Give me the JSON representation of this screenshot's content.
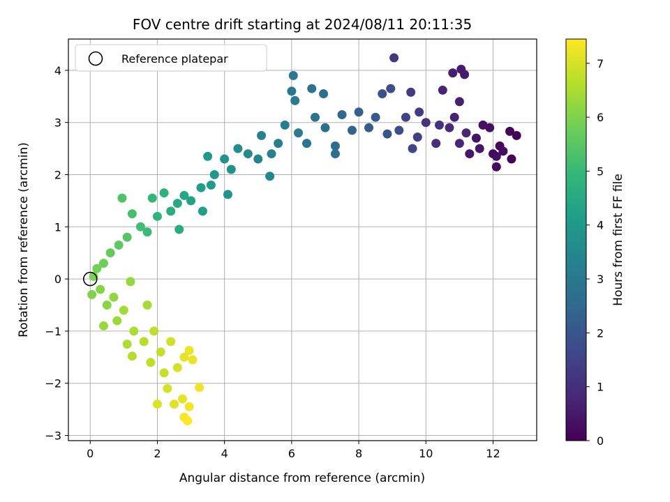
{
  "chart_data": {
    "type": "scatter",
    "title": "FOV centre drift starting at 2024/08/11 20:11:35",
    "xlabel": "Angular distance from reference (arcmin)",
    "ylabel": "Rotation from reference (arcmin)",
    "xlim": [
      -0.65,
      13.3
    ],
    "ylim": [
      -3.1,
      4.6
    ],
    "xticks": [
      0,
      2,
      4,
      6,
      8,
      10,
      12
    ],
    "yticks": [
      -3,
      -2,
      -1,
      0,
      1,
      2,
      3,
      4
    ],
    "grid": true,
    "legend": {
      "location": "top-left",
      "entries": [
        "Reference platepar"
      ]
    },
    "reference_point": {
      "x": 0,
      "y": 0
    },
    "colorbar": {
      "label": "Hours from first FF file",
      "colormap": "viridis",
      "range": [
        0,
        7.45
      ],
      "ticks": [
        0,
        1,
        2,
        3,
        4,
        5,
        6,
        7
      ]
    },
    "points": [
      {
        "x": 12.7,
        "y": 2.75,
        "h": 0.05
      },
      {
        "x": 12.5,
        "y": 2.83,
        "h": 0.1
      },
      {
        "x": 12.55,
        "y": 2.3,
        "h": 0.1
      },
      {
        "x": 12.2,
        "y": 2.55,
        "h": 0.15
      },
      {
        "x": 12.1,
        "y": 2.15,
        "h": 0.2
      },
      {
        "x": 12.0,
        "y": 2.4,
        "h": 0.2
      },
      {
        "x": 12.3,
        "y": 2.45,
        "h": 0.25
      },
      {
        "x": 12.1,
        "y": 2.35,
        "h": 0.25
      },
      {
        "x": 11.9,
        "y": 2.9,
        "h": 0.3
      },
      {
        "x": 11.7,
        "y": 2.95,
        "h": 0.35
      },
      {
        "x": 11.5,
        "y": 2.7,
        "h": 0.4
      },
      {
        "x": 11.3,
        "y": 2.4,
        "h": 0.45
      },
      {
        "x": 11.6,
        "y": 2.5,
        "h": 0.45
      },
      {
        "x": 11.05,
        "y": 4.02,
        "h": 0.5
      },
      {
        "x": 11.15,
        "y": 3.92,
        "h": 0.55
      },
      {
        "x": 10.8,
        "y": 3.95,
        "h": 0.6
      },
      {
        "x": 11.0,
        "y": 3.4,
        "h": 0.65
      },
      {
        "x": 10.85,
        "y": 3.1,
        "h": 0.7
      },
      {
        "x": 10.5,
        "y": 3.62,
        "h": 0.75
      },
      {
        "x": 11.2,
        "y": 2.8,
        "h": 0.8
      },
      {
        "x": 11.0,
        "y": 2.6,
        "h": 0.85
      },
      {
        "x": 10.7,
        "y": 2.9,
        "h": 0.9
      },
      {
        "x": 10.3,
        "y": 2.6,
        "h": 1.0
      },
      {
        "x": 10.4,
        "y": 2.95,
        "h": 1.05
      },
      {
        "x": 10.0,
        "y": 3.0,
        "h": 1.1
      },
      {
        "x": 9.05,
        "y": 4.24,
        "h": 1.2
      },
      {
        "x": 9.55,
        "y": 3.58,
        "h": 1.3
      },
      {
        "x": 9.8,
        "y": 3.2,
        "h": 1.35
      },
      {
        "x": 9.75,
        "y": 2.72,
        "h": 1.4
      },
      {
        "x": 9.4,
        "y": 3.1,
        "h": 1.5
      },
      {
        "x": 9.6,
        "y": 2.5,
        "h": 1.6
      },
      {
        "x": 9.2,
        "y": 2.85,
        "h": 1.7
      },
      {
        "x": 8.95,
        "y": 3.65,
        "h": 1.8
      },
      {
        "x": 8.7,
        "y": 3.55,
        "h": 1.9
      },
      {
        "x": 8.85,
        "y": 2.78,
        "h": 2.0
      },
      {
        "x": 8.5,
        "y": 3.1,
        "h": 2.1
      },
      {
        "x": 8.3,
        "y": 2.9,
        "h": 2.2
      },
      {
        "x": 8.0,
        "y": 3.2,
        "h": 2.3
      },
      {
        "x": 7.8,
        "y": 2.85,
        "h": 2.4
      },
      {
        "x": 7.5,
        "y": 3.15,
        "h": 2.5
      },
      {
        "x": 7.3,
        "y": 2.4,
        "h": 2.6
      },
      {
        "x": 7.3,
        "y": 2.55,
        "h": 2.65
      },
      {
        "x": 6.95,
        "y": 3.55,
        "h": 2.7
      },
      {
        "x": 7.0,
        "y": 2.9,
        "h": 2.75
      },
      {
        "x": 6.6,
        "y": 3.65,
        "h": 2.8
      },
      {
        "x": 6.7,
        "y": 3.1,
        "h": 2.85
      },
      {
        "x": 6.45,
        "y": 2.6,
        "h": 2.9
      },
      {
        "x": 6.05,
        "y": 3.9,
        "h": 2.95
      },
      {
        "x": 6.0,
        "y": 3.6,
        "h": 3.0
      },
      {
        "x": 6.1,
        "y": 3.42,
        "h": 3.05
      },
      {
        "x": 6.2,
        "y": 2.8,
        "h": 3.1
      },
      {
        "x": 5.8,
        "y": 2.95,
        "h": 3.15
      },
      {
        "x": 5.6,
        "y": 2.6,
        "h": 3.2
      },
      {
        "x": 5.4,
        "y": 2.4,
        "h": 3.25
      },
      {
        "x": 5.1,
        "y": 2.75,
        "h": 3.35
      },
      {
        "x": 5.0,
        "y": 2.3,
        "h": 3.4
      },
      {
        "x": 5.35,
        "y": 1.97,
        "h": 3.45
      },
      {
        "x": 4.7,
        "y": 2.4,
        "h": 3.55
      },
      {
        "x": 4.4,
        "y": 2.5,
        "h": 3.65
      },
      {
        "x": 4.2,
        "y": 2.1,
        "h": 3.75
      },
      {
        "x": 4.0,
        "y": 2.3,
        "h": 3.8
      },
      {
        "x": 4.1,
        "y": 1.62,
        "h": 3.85
      },
      {
        "x": 3.7,
        "y": 2.0,
        "h": 3.95
      },
      {
        "x": 3.5,
        "y": 2.35,
        "h": 4.0
      },
      {
        "x": 3.6,
        "y": 1.8,
        "h": 4.05
      },
      {
        "x": 3.3,
        "y": 1.75,
        "h": 4.15
      },
      {
        "x": 3.35,
        "y": 1.3,
        "h": 4.2
      },
      {
        "x": 3.0,
        "y": 1.5,
        "h": 4.3
      },
      {
        "x": 2.8,
        "y": 1.6,
        "h": 4.4
      },
      {
        "x": 2.6,
        "y": 1.45,
        "h": 4.5
      },
      {
        "x": 2.65,
        "y": 0.95,
        "h": 4.55
      },
      {
        "x": 2.4,
        "y": 1.3,
        "h": 4.65
      },
      {
        "x": 2.2,
        "y": 1.65,
        "h": 4.75
      },
      {
        "x": 2.0,
        "y": 1.2,
        "h": 4.85
      },
      {
        "x": 1.85,
        "y": 1.55,
        "h": 4.95
      },
      {
        "x": 1.7,
        "y": 0.9,
        "h": 5.05
      },
      {
        "x": 1.5,
        "y": 1.0,
        "h": 5.15
      },
      {
        "x": 1.25,
        "y": 1.25,
        "h": 5.25
      },
      {
        "x": 0.95,
        "y": 1.55,
        "h": 5.35
      },
      {
        "x": 1.1,
        "y": 0.8,
        "h": 5.45
      },
      {
        "x": 0.85,
        "y": 0.65,
        "h": 5.55
      },
      {
        "x": 0.6,
        "y": 0.5,
        "h": 5.65
      },
      {
        "x": 0.4,
        "y": 0.3,
        "h": 5.75
      },
      {
        "x": 0.2,
        "y": 0.2,
        "h": 5.85
      },
      {
        "x": 0.1,
        "y": 0.05,
        "h": 5.95
      },
      {
        "x": 0.05,
        "y": -0.3,
        "h": 6.0
      },
      {
        "x": 0.3,
        "y": -0.2,
        "h": 6.05
      },
      {
        "x": 0.5,
        "y": -0.5,
        "h": 6.15
      },
      {
        "x": 0.7,
        "y": -0.35,
        "h": 6.2
      },
      {
        "x": 1.2,
        "y": -0.05,
        "h": 6.25
      },
      {
        "x": 0.4,
        "y": -0.9,
        "h": 6.3
      },
      {
        "x": 0.8,
        "y": -0.8,
        "h": 6.35
      },
      {
        "x": 1.0,
        "y": -0.6,
        "h": 6.4
      },
      {
        "x": 1.7,
        "y": -0.5,
        "h": 6.45
      },
      {
        "x": 1.3,
        "y": -1.0,
        "h": 6.5
      },
      {
        "x": 1.1,
        "y": -1.25,
        "h": 6.55
      },
      {
        "x": 1.25,
        "y": -1.48,
        "h": 6.6
      },
      {
        "x": 1.6,
        "y": -1.2,
        "h": 6.65
      },
      {
        "x": 1.9,
        "y": -1.0,
        "h": 6.7
      },
      {
        "x": 1.8,
        "y": -1.6,
        "h": 6.75
      },
      {
        "x": 2.1,
        "y": -1.4,
        "h": 6.8
      },
      {
        "x": 2.2,
        "y": -1.8,
        "h": 6.85
      },
      {
        "x": 2.4,
        "y": -1.2,
        "h": 6.9
      },
      {
        "x": 2.3,
        "y": -2.1,
        "h": 6.95
      },
      {
        "x": 2.6,
        "y": -1.7,
        "h": 7.0
      },
      {
        "x": 2.0,
        "y": -2.4,
        "h": 7.05
      },
      {
        "x": 2.5,
        "y": -2.4,
        "h": 7.1
      },
      {
        "x": 2.8,
        "y": -1.5,
        "h": 7.15
      },
      {
        "x": 2.75,
        "y": -2.3,
        "h": 7.2
      },
      {
        "x": 3.05,
        "y": -1.55,
        "h": 7.22
      },
      {
        "x": 2.95,
        "y": -1.37,
        "h": 7.25
      },
      {
        "x": 3.25,
        "y": -2.08,
        "h": 7.3
      },
      {
        "x": 2.95,
        "y": -2.45,
        "h": 7.35
      },
      {
        "x": 2.8,
        "y": -2.65,
        "h": 7.4
      },
      {
        "x": 2.9,
        "y": -2.72,
        "h": 7.45
      }
    ]
  }
}
